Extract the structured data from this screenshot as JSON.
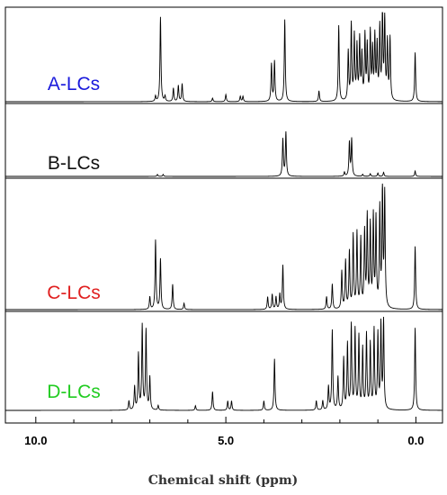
{
  "chart_data": {
    "type": "line",
    "stacked_panels": true,
    "xlabel": "Chemical shift (ppm)",
    "xlim": [
      10.8,
      -0.7
    ],
    "x_reversed": true,
    "xticks": [
      10.0,
      5.0,
      0.0
    ],
    "xtick_labels": [
      "10.0",
      "5.0",
      "0.0"
    ],
    "grid": false,
    "series": [
      {
        "name": "A-LCs",
        "color": "#1a1adc",
        "peaks": [
          [
            0.02,
            0.55
          ],
          [
            0.68,
            0.7
          ],
          [
            0.75,
            0.65
          ],
          [
            0.82,
            0.9
          ],
          [
            0.88,
            1.0
          ],
          [
            0.95,
            0.8
          ],
          [
            1.02,
            0.6
          ],
          [
            1.08,
            0.7
          ],
          [
            1.14,
            0.55
          ],
          [
            1.2,
            0.75
          ],
          [
            1.28,
            0.6
          ],
          [
            1.34,
            0.72
          ],
          [
            1.42,
            0.5
          ],
          [
            1.48,
            0.68
          ],
          [
            1.55,
            0.6
          ],
          [
            1.62,
            0.72
          ],
          [
            1.7,
            0.85
          ],
          [
            1.78,
            0.55
          ],
          [
            2.03,
            0.85
          ],
          [
            2.55,
            0.12
          ],
          [
            3.45,
            0.92
          ],
          [
            3.72,
            0.45
          ],
          [
            3.8,
            0.42
          ],
          [
            4.55,
            0.06
          ],
          [
            4.62,
            0.06
          ],
          [
            5.0,
            0.08
          ],
          [
            5.35,
            0.04
          ],
          [
            6.15,
            0.2
          ],
          [
            6.25,
            0.18
          ],
          [
            6.38,
            0.15
          ],
          [
            6.6,
            0.06
          ],
          [
            6.72,
            0.95
          ],
          [
            6.85,
            0.06
          ]
        ]
      },
      {
        "name": "B-LCs",
        "color": "#111111",
        "peaks": [
          [
            0.02,
            0.08
          ],
          [
            0.85,
            0.06
          ],
          [
            1.0,
            0.05
          ],
          [
            1.2,
            0.04
          ],
          [
            1.4,
            0.03
          ],
          [
            1.69,
            0.55
          ],
          [
            1.75,
            0.5
          ],
          [
            1.88,
            0.06
          ],
          [
            3.42,
            0.65
          ],
          [
            3.5,
            0.55
          ],
          [
            6.65,
            0.03
          ],
          [
            6.8,
            0.03
          ]
        ]
      },
      {
        "name": "C-LCs",
        "color": "#e02020",
        "peaks": [
          [
            0.02,
            0.5
          ],
          [
            0.82,
            0.9
          ],
          [
            0.88,
            0.95
          ],
          [
            0.95,
            0.78
          ],
          [
            1.05,
            0.7
          ],
          [
            1.12,
            0.72
          ],
          [
            1.2,
            0.65
          ],
          [
            1.28,
            0.72
          ],
          [
            1.35,
            0.6
          ],
          [
            1.45,
            0.55
          ],
          [
            1.55,
            0.6
          ],
          [
            1.65,
            0.58
          ],
          [
            1.75,
            0.45
          ],
          [
            1.85,
            0.38
          ],
          [
            1.95,
            0.3
          ],
          [
            2.2,
            0.2
          ],
          [
            2.35,
            0.1
          ],
          [
            3.5,
            0.35
          ],
          [
            3.58,
            0.12
          ],
          [
            3.68,
            0.1
          ],
          [
            3.78,
            0.12
          ],
          [
            3.9,
            0.1
          ],
          [
            6.1,
            0.05
          ],
          [
            6.4,
            0.2
          ],
          [
            6.72,
            0.4
          ],
          [
            6.85,
            0.55
          ],
          [
            7.0,
            0.1
          ]
        ]
      },
      {
        "name": "D-LCs",
        "color": "#22cc22",
        "peaks": [
          [
            0.02,
            0.88
          ],
          [
            0.85,
            0.95
          ],
          [
            0.92,
            0.9
          ],
          [
            1.0,
            0.8
          ],
          [
            1.1,
            0.85
          ],
          [
            1.2,
            0.7
          ],
          [
            1.3,
            0.8
          ],
          [
            1.4,
            0.65
          ],
          [
            1.5,
            0.78
          ],
          [
            1.6,
            0.85
          ],
          [
            1.7,
            0.9
          ],
          [
            1.8,
            0.7
          ],
          [
            1.9,
            0.55
          ],
          [
            2.05,
            0.35
          ],
          [
            2.2,
            0.85
          ],
          [
            2.3,
            0.25
          ],
          [
            2.45,
            0.1
          ],
          [
            2.62,
            0.1
          ],
          [
            3.72,
            0.55
          ],
          [
            4.0,
            0.1
          ],
          [
            4.85,
            0.1
          ],
          [
            4.95,
            0.1
          ],
          [
            5.35,
            0.2
          ],
          [
            5.8,
            0.05
          ],
          [
            6.78,
            0.05
          ],
          [
            7.0,
            0.35
          ],
          [
            7.1,
            0.85
          ],
          [
            7.2,
            0.9
          ],
          [
            7.3,
            0.6
          ],
          [
            7.4,
            0.25
          ],
          [
            7.55,
            0.1
          ]
        ]
      }
    ]
  }
}
